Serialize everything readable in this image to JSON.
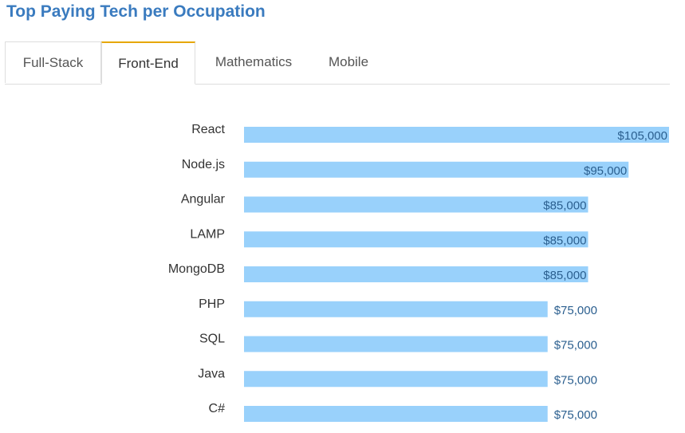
{
  "title": "Top Paying Tech per Occupation",
  "tabs": [
    {
      "label": "Full-Stack",
      "active": false
    },
    {
      "label": "Front-End",
      "active": true
    },
    {
      "label": "Mathematics",
      "active": false
    },
    {
      "label": "Mobile",
      "active": false
    }
  ],
  "colors": {
    "bar": "#99d1fb",
    "accent": "#e6a700",
    "title": "#3a7bbf"
  },
  "chart_data": {
    "type": "bar",
    "orientation": "horizontal",
    "categories": [
      "React",
      "Node.js",
      "Angular",
      "LAMP",
      "MongoDB",
      "PHP",
      "SQL",
      "Java",
      "C#"
    ],
    "values": [
      105000,
      95000,
      85000,
      85000,
      85000,
      75000,
      75000,
      75000,
      75000
    ],
    "data_labels": [
      "$105,000",
      "$95,000",
      "$85,000",
      "$85,000",
      "$85,000",
      "$75,000",
      "$75,000",
      "$75,000",
      "$75,000"
    ],
    "xlim": [
      0,
      105000
    ],
    "grid": false,
    "axes_visible": false
  }
}
